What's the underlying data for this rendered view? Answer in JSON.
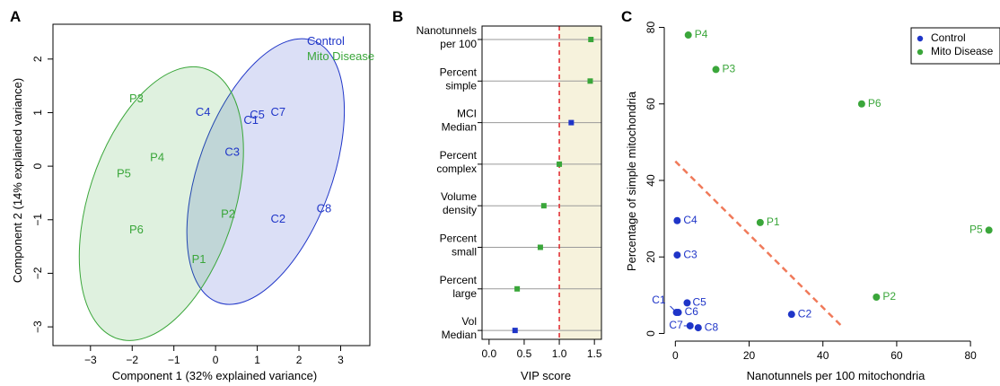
{
  "panels": {
    "a": "A",
    "b": "B",
    "c": "C"
  },
  "colors": {
    "control": "#1f35c8",
    "mito": "#3aa63a",
    "dashed_b": "#e0262c",
    "dashed_c": "#f07a5a",
    "vip_band": "#f6f2dc"
  },
  "chart_data": [
    {
      "type": "scatter",
      "xlabel": "Component 1 (32% explained variance)",
      "ylabel": "Component 2 (14% explained variance)",
      "xlim": [
        -3.9,
        3.7
      ],
      "ylim": [
        -3.35,
        2.65
      ],
      "xticks": [
        -3,
        -2,
        -1,
        0,
        1,
        2,
        3
      ],
      "yticks": [
        -3,
        -2,
        -1,
        0,
        1,
        2
      ],
      "legend": {
        "position": "top-right",
        "entries": [
          "Control",
          "Mito Disease"
        ]
      },
      "series": [
        {
          "name": "Control",
          "points": [
            {
              "label": "C4",
              "x": -0.3,
              "y": 1.0
            },
            {
              "label": "C1",
              "x": 0.85,
              "y": 0.85
            },
            {
              "label": "C5",
              "x": 1.0,
              "y": 0.95
            },
            {
              "label": "C7",
              "x": 1.5,
              "y": 1.0
            },
            {
              "label": "C3",
              "x": 0.4,
              "y": 0.25
            },
            {
              "label": "C8",
              "x": 2.6,
              "y": -0.8
            },
            {
              "label": "C2",
              "x": 1.5,
              "y": -1.0
            }
          ]
        },
        {
          "name": "Mito Disease",
          "points": [
            {
              "label": "P3",
              "x": -1.9,
              "y": 1.25
            },
            {
              "label": "P4",
              "x": -1.4,
              "y": 0.15
            },
            {
              "label": "P5",
              "x": -2.2,
              "y": -0.15
            },
            {
              "label": "P6",
              "x": -1.9,
              "y": -1.2
            },
            {
              "label": "P2",
              "x": 0.3,
              "y": -0.9
            },
            {
              "label": "P1",
              "x": -0.4,
              "y": -1.75
            }
          ]
        }
      ],
      "ellipses": [
        {
          "name": "Control",
          "cx": 1.2,
          "cy": -0.1,
          "rx": 1.6,
          "ry": 2.6,
          "angle": 20
        },
        {
          "name": "Mito Disease",
          "cx": -1.3,
          "cy": -0.7,
          "rx": 1.75,
          "ry": 2.65,
          "angle": 18
        }
      ]
    },
    {
      "type": "scatter",
      "xlabel": "VIP score",
      "xlim": [
        -0.1,
        1.6
      ],
      "xticks": [
        "0.0",
        "0.5",
        "1.0",
        "1.5"
      ],
      "threshold": 1.0,
      "grid": "horizontal reference lines",
      "categories": [
        "Nanotunnels\nper 100",
        "Percent\nsimple",
        "MCI\nMedian",
        "Percent\ncomplex",
        "Volume\ndensity",
        "Percent\nsmall",
        "Percent\nlarge",
        "Vol\nMedian"
      ],
      "values": [
        1.45,
        1.44,
        1.17,
        1.0,
        0.78,
        0.73,
        0.4,
        0.37
      ],
      "groups": [
        "Mito Disease",
        "Mito Disease",
        "Control",
        "Mito Disease",
        "Mito Disease",
        "Mito Disease",
        "Mito Disease",
        "Control"
      ]
    },
    {
      "type": "scatter",
      "xlabel": "Nanotunnels per 100 mitochondria",
      "ylabel": "Percentage of simple mitochondria",
      "xlim": [
        -3,
        88
      ],
      "ylim": [
        -2,
        82
      ],
      "xticks": [
        0,
        20,
        40,
        60,
        80
      ],
      "yticks": [
        0,
        20,
        40,
        60,
        80
      ],
      "legend": {
        "position": "top-right",
        "entries": [
          "Control",
          "Mito Disease"
        ]
      },
      "trend_line": [
        [
          0,
          45
        ],
        [
          45,
          2
        ]
      ],
      "series": [
        {
          "name": "Control",
          "points": [
            {
              "label": "C4",
              "x": 0.5,
              "y": 29.5
            },
            {
              "label": "C3",
              "x": 0.5,
              "y": 20.5
            },
            {
              "label": "C1",
              "x": 0.3,
              "y": 5.5
            },
            {
              "label": "C5",
              "x": 3.2,
              "y": 8.0
            },
            {
              "label": "C6",
              "x": 0.8,
              "y": 5.5
            },
            {
              "label": "C7",
              "x": 4.0,
              "y": 2.0
            },
            {
              "label": "C8",
              "x": 6.2,
              "y": 1.5
            },
            {
              "label": "C2",
              "x": 31.5,
              "y": 5.0
            }
          ]
        },
        {
          "name": "Mito Disease",
          "points": [
            {
              "label": "P4",
              "x": 3.5,
              "y": 78
            },
            {
              "label": "P3",
              "x": 11,
              "y": 69
            },
            {
              "label": "P6",
              "x": 50.5,
              "y": 60
            },
            {
              "label": "P1",
              "x": 23,
              "y": 29
            },
            {
              "label": "P5",
              "x": 85,
              "y": 27
            },
            {
              "label": "P2",
              "x": 54.5,
              "y": 9.5
            }
          ]
        }
      ]
    }
  ]
}
